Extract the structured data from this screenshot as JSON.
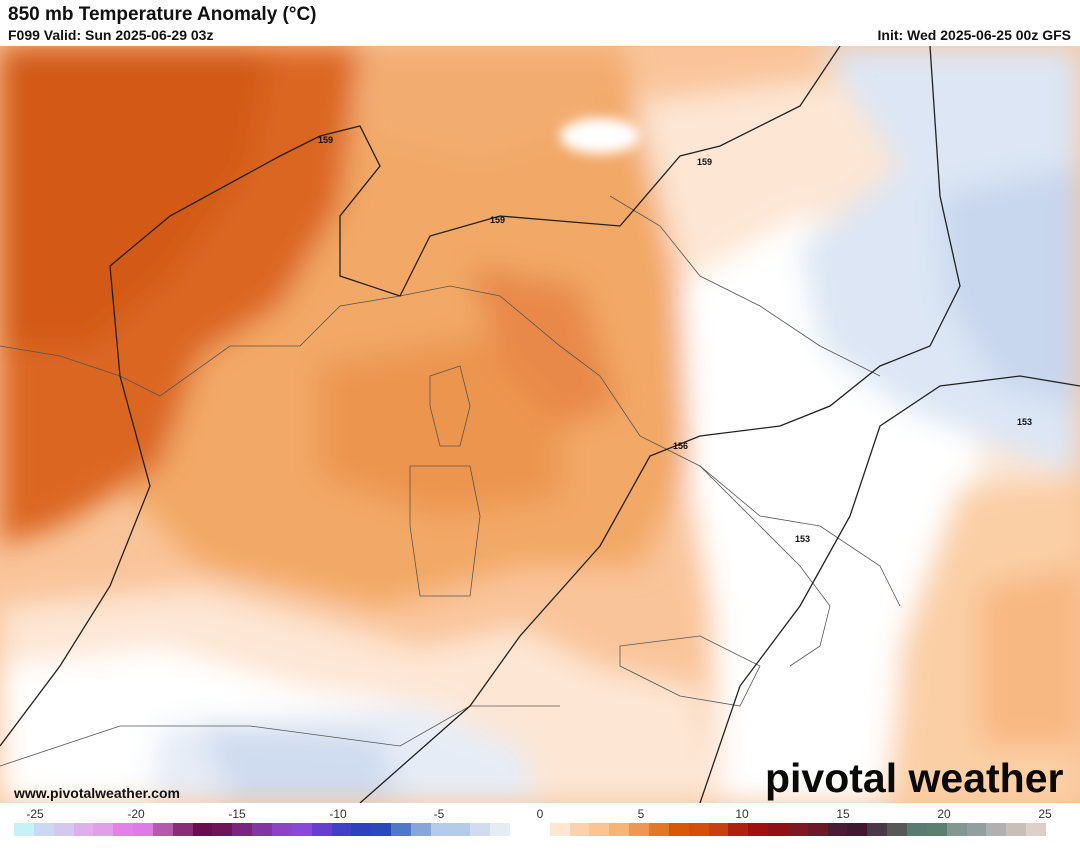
{
  "header": {
    "title": "850 mb Temperature Anomaly (°C)",
    "valid": "F099 Valid: Sun 2025-06-29 03z",
    "init": "Init: Wed 2025-06-25 00z GFS"
  },
  "map": {
    "contour_labels": [
      "159",
      "159",
      "159",
      "156",
      "153",
      "153"
    ]
  },
  "footer": {
    "website": "www.pivotalweather.com",
    "logo_text": "pivotal weather"
  },
  "colorbar": {
    "tick_labels": [
      "-25",
      "-20",
      "-15",
      "-10",
      "-5",
      "0",
      "5",
      "10",
      "15",
      "20",
      "25"
    ],
    "tick_values": [
      -25,
      -20,
      -15,
      -10,
      -5,
      0,
      5,
      10,
      15,
      20,
      25
    ],
    "colors": [
      "#c4f2f6",
      "#ccd8f2",
      "#d4c8ee",
      "#dcb0ea",
      "#e0a0e8",
      "#e480ea",
      "#e07ae6",
      "#b85aaa",
      "#8c2c78",
      "#6c0c50",
      "#701458",
      "#7c2280",
      "#8236a4",
      "#8a44c4",
      "#8848d8",
      "#6440d0",
      "#4040c8",
      "#2c40c0",
      "#2848bc",
      "#5078c8",
      "#88a4dc",
      "#b4ccea",
      "#b4cce8",
      "#d0dcf0",
      "#e6ecf6",
      "#ffffff",
      "#ffffff",
      "#fde6d4",
      "#fcd2ac",
      "#fcc490",
      "#f8b474",
      "#ec9850",
      "#e07828",
      "#d85808",
      "#d45008",
      "#c84010",
      "#b02010",
      "#a01010",
      "#901018",
      "#801820",
      "#6c1828",
      "#481c34",
      "#401830",
      "#483848",
      "#585858",
      "#587c70",
      "#5c8070",
      "#809890",
      "#90a0a0",
      "#b0b0b0",
      "#c8c0b8",
      "#dcd0c8"
    ]
  }
}
